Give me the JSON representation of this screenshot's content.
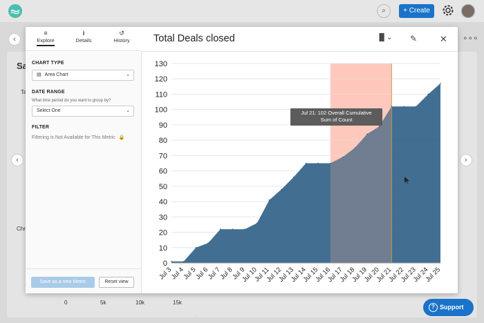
{
  "topbar": {
    "create_label": "+ Create",
    "search_glyph": "⌕",
    "icons": [
      "logo-icon",
      "search-icon",
      "gear-icon",
      "avatar"
    ]
  },
  "background": {
    "title_fragment": "Sa",
    "label_fragment_1": "Ta",
    "label_fragment_2": "Chr",
    "axis_ticks": [
      "0",
      "5k",
      "10k",
      "15k"
    ],
    "nav_prev": "‹",
    "nav_next": "›",
    "nav_left": "‹",
    "nav_right": "›",
    "more": "∘∘∘"
  },
  "modal": {
    "title": "Total Deals closed",
    "tabs": [
      {
        "label": "Explore",
        "icon": "≡"
      },
      {
        "label": "Details",
        "icon": "i"
      },
      {
        "label": "History",
        "icon": "↺"
      }
    ],
    "chart_type_icon": "▐▌⌄",
    "edit_icon": "✎",
    "close_icon": "✕"
  },
  "panel": {
    "chart_type_label": "CHART TYPE",
    "chart_type_value": "Area Chart",
    "date_range_label": "DATE RANGE",
    "date_range_help": "What time period do you want to group by?",
    "date_range_value": "Select One",
    "filter_label": "FILTER",
    "filter_note": "Filtering is Not Available for This Metric",
    "save_label": "Save as a new Metric",
    "reset_label": "Reset view"
  },
  "tooltip": {
    "line1": "Jul 21: 102 Overall Cumulative",
    "line2": "Sum of Count"
  },
  "support_label": "Support",
  "colors": {
    "area": "#2e5f85",
    "highlight": "#ffcfc4",
    "accent": "#1a73c9"
  },
  "chart_data": {
    "type": "area",
    "x": [
      "Jul 3",
      "Jul 4",
      "Jul 5",
      "Jul 6",
      "Jul 7",
      "Jul 8",
      "Jul 9",
      "Jul 10",
      "Jul 11",
      "Jul 12",
      "Jul 13",
      "Jul 14",
      "Jul 15",
      "Jul 16",
      "Jul 17",
      "Jul 18",
      "Jul 19",
      "Jul 20",
      "Jul 21",
      "Jul 22",
      "Jul 23",
      "Jul 24",
      "Jul 25"
    ],
    "values": [
      1,
      1,
      10,
      13,
      22,
      22,
      22,
      26,
      41,
      48,
      56,
      65,
      65,
      65,
      69,
      75,
      84,
      89,
      102,
      102,
      102,
      110,
      117
    ],
    "ylim": [
      0,
      130
    ],
    "yticks": [
      0,
      10,
      20,
      30,
      40,
      50,
      60,
      70,
      80,
      90,
      100,
      110,
      120,
      130
    ],
    "highlight_range": [
      "Jul 16",
      "Jul 21"
    ],
    "grid": true
  }
}
